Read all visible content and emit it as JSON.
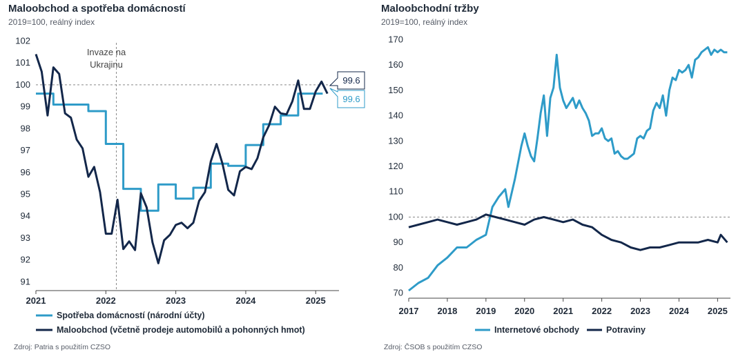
{
  "left": {
    "title": "Maloobchod a spotřeba domácností",
    "subtitle": "2019=100, reálný index",
    "source": "Zdroj: Patria s použitím CZSO",
    "annotation": [
      "Invaze na",
      "Ukrajinu"
    ],
    "callouts": {
      "retail": "99.6",
      "consumption": "99.6"
    }
  },
  "right": {
    "title": "Maloobchodní tržby",
    "subtitle": "2019=100, reálný index",
    "source": "Zdroj: ČSOB s použitím CZSO"
  },
  "colors": {
    "light": "#2e9bc8",
    "dark": "#13274a",
    "axis": "#444444",
    "ref": "#888888"
  },
  "chart_data": [
    {
      "type": "line",
      "title": "Maloobchod a spotřeba domácností",
      "ylabel": "2019=100, reálný index",
      "ylim": [
        90.6,
        102.3
      ],
      "yticks": [
        91,
        92,
        93,
        94,
        95,
        96,
        97,
        98,
        99,
        100,
        101,
        102
      ],
      "xlim": [
        2021.0,
        2025.333
      ],
      "xticks": [
        "2021",
        "2022",
        "2023",
        "2024",
        "2025"
      ],
      "reference_line_y": 100,
      "vline_x": 2022.15,
      "legend": "bottom",
      "series": [
        {
          "name": "Spotřeba domácností (národní účty)",
          "color": "#2e9bc8",
          "step": true,
          "x": [
            2021.0,
            2021.25,
            2021.5,
            2021.75,
            2022.0,
            2022.25,
            2022.5,
            2022.75,
            2023.0,
            2023.25,
            2023.5,
            2023.75,
            2024.0,
            2024.25,
            2024.5,
            2024.75,
            2025.0
          ],
          "values": [
            99.6,
            99.1,
            99.1,
            98.8,
            97.3,
            95.25,
            94.25,
            95.45,
            94.8,
            95.3,
            96.4,
            96.3,
            97.25,
            98.2,
            98.6,
            99.6,
            99.6
          ]
        },
        {
          "name": "Maloobchod (včetně prodeje automobilů a pohonných hmot)",
          "color": "#13274a",
          "x": [
            2021.0,
            2021.083,
            2021.167,
            2021.25,
            2021.333,
            2021.417,
            2021.5,
            2021.583,
            2021.667,
            2021.75,
            2021.833,
            2021.917,
            2022.0,
            2022.083,
            2022.167,
            2022.25,
            2022.333,
            2022.417,
            2022.5,
            2022.583,
            2022.667,
            2022.75,
            2022.833,
            2022.917,
            2023.0,
            2023.083,
            2023.167,
            2023.25,
            2023.333,
            2023.417,
            2023.5,
            2023.583,
            2023.667,
            2023.75,
            2023.833,
            2023.917,
            2024.0,
            2024.083,
            2024.167,
            2024.25,
            2024.333,
            2024.417,
            2024.5,
            2024.583,
            2024.667,
            2024.75,
            2024.833,
            2024.917,
            2025.0,
            2025.083,
            2025.167
          ],
          "values": [
            101.4,
            100.6,
            98.6,
            100.8,
            100.5,
            98.7,
            98.5,
            97.5,
            97.1,
            95.8,
            96.25,
            95.1,
            93.2,
            93.2,
            94.75,
            92.5,
            92.85,
            92.45,
            95.05,
            94.4,
            92.8,
            91.85,
            92.9,
            93.15,
            93.6,
            93.7,
            93.45,
            93.7,
            94.7,
            95.1,
            96.5,
            97.3,
            96.4,
            95.2,
            94.95,
            96.05,
            96.25,
            96.15,
            96.65,
            97.6,
            98.15,
            99.0,
            98.7,
            98.65,
            99.25,
            100.2,
            98.9,
            98.9,
            99.7,
            100.15,
            99.6
          ]
        }
      ]
    },
    {
      "type": "line",
      "title": "Maloobchodní tržby",
      "ylabel": "2019=100, reálný index",
      "ylim": [
        68,
        172
      ],
      "yticks": [
        70,
        80,
        90,
        100,
        110,
        120,
        130,
        140,
        150,
        160,
        170
      ],
      "xlim": [
        2017.0,
        2025.333
      ],
      "xticks": [
        "2017",
        "2018",
        "2019",
        "2020",
        "2021",
        "2022",
        "2023",
        "2024",
        "2025"
      ],
      "reference_line_y": 100,
      "legend": "bottom",
      "series": [
        {
          "name": "Internetové obchody",
          "color": "#2e9bc8",
          "x": [
            2017.0,
            2017.25,
            2017.5,
            2017.75,
            2018.0,
            2018.25,
            2018.5,
            2018.75,
            2019.0,
            2019.167,
            2019.333,
            2019.5,
            2019.583,
            2019.75,
            2019.917,
            2020.0,
            2020.083,
            2020.167,
            2020.25,
            2020.333,
            2020.417,
            2020.5,
            2020.583,
            2020.667,
            2020.75,
            2020.833,
            2020.917,
            2021.0,
            2021.083,
            2021.167,
            2021.25,
            2021.333,
            2021.417,
            2021.5,
            2021.583,
            2021.667,
            2021.75,
            2021.833,
            2021.917,
            2022.0,
            2022.083,
            2022.167,
            2022.25,
            2022.333,
            2022.417,
            2022.5,
            2022.583,
            2022.667,
            2022.75,
            2022.833,
            2022.917,
            2023.0,
            2023.083,
            2023.167,
            2023.25,
            2023.333,
            2023.417,
            2023.5,
            2023.583,
            2023.667,
            2023.75,
            2023.833,
            2023.917,
            2024.0,
            2024.083,
            2024.167,
            2024.25,
            2024.333,
            2024.417,
            2024.5,
            2024.583,
            2024.667,
            2024.75,
            2024.833,
            2024.917,
            2025.0,
            2025.083,
            2025.167,
            2025.25
          ],
          "values": [
            71,
            74,
            76,
            81,
            84,
            88,
            88,
            91,
            93,
            104,
            108,
            111,
            104,
            115,
            128,
            133,
            128,
            124,
            122,
            131,
            141,
            148,
            132,
            147,
            151,
            164,
            151,
            146,
            143,
            145,
            147,
            143,
            146,
            143,
            141,
            138,
            132,
            133,
            133,
            135,
            131,
            130,
            131,
            125,
            126,
            124,
            123,
            123,
            124,
            125,
            131,
            132,
            131,
            134,
            135,
            142,
            145,
            143,
            148,
            140,
            150,
            155,
            154,
            158,
            157,
            158,
            160,
            155,
            162,
            163,
            165,
            166,
            167,
            164,
            166,
            165,
            166,
            165,
            165
          ]
        },
        {
          "name": "Potraviny",
          "color": "#13274a",
          "x": [
            2017.0,
            2017.25,
            2017.5,
            2017.75,
            2018.0,
            2018.25,
            2018.5,
            2018.75,
            2019.0,
            2019.25,
            2019.5,
            2019.75,
            2020.0,
            2020.25,
            2020.5,
            2020.75,
            2021.0,
            2021.25,
            2021.5,
            2021.75,
            2022.0,
            2022.25,
            2022.5,
            2022.75,
            2023.0,
            2023.25,
            2023.5,
            2023.75,
            2024.0,
            2024.25,
            2024.5,
            2024.75,
            2025.0,
            2025.083,
            2025.25
          ],
          "values": [
            96,
            97,
            98,
            99,
            98,
            97,
            98,
            99,
            101,
            100,
            99,
            98,
            97,
            99,
            100,
            99,
            98,
            99,
            97,
            96,
            93,
            91,
            90,
            88,
            87,
            88,
            88,
            89,
            90,
            90,
            90,
            91,
            90,
            93,
            90
          ]
        }
      ]
    }
  ]
}
